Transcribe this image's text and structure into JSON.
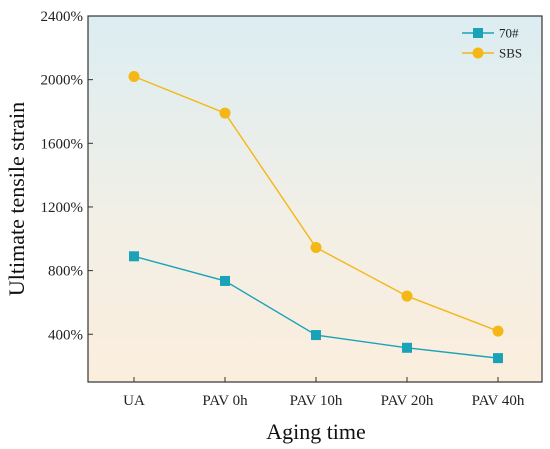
{
  "chart_data": {
    "type": "line",
    "title": "",
    "xlabel": "Aging time",
    "ylabel": "Ultimate tensile strain",
    "categories": [
      "UA",
      "PAV 0h",
      "PAV 10h",
      "PAV 20h",
      "PAV 40h"
    ],
    "ylim": [
      100,
      2400
    ],
    "yticks": [
      400,
      800,
      1200,
      1600,
      2000,
      2400
    ],
    "ytick_labels": [
      "400%",
      "800%",
      "1200%",
      "1600%",
      "2000%",
      "2400%"
    ],
    "y_unit": "%",
    "grid": false,
    "legend_position": "top-right",
    "background": "vertical gradient from light blue (top) to light peach (bottom)",
    "series": [
      {
        "name": "70#",
        "marker": "square",
        "color": "#1aa3b8",
        "values": [
          890,
          735,
          395,
          315,
          250
        ]
      },
      {
        "name": "SBS",
        "marker": "circle",
        "color": "#f5b716",
        "values": [
          2020,
          1790,
          945,
          640,
          420
        ]
      }
    ]
  }
}
